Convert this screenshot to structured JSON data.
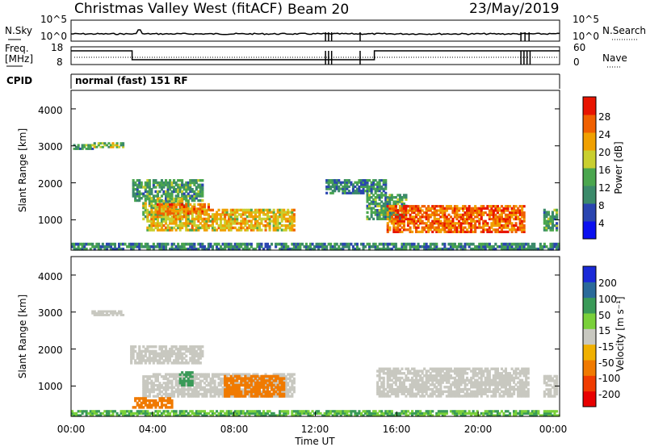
{
  "header": {
    "station": "Christmas Valley West (fitACF)",
    "beam": "Beam 20",
    "date": "23/May/2019"
  },
  "noise_panel": {
    "left_label": "N.Sky",
    "right_label": "N.Search",
    "left_ticks": [
      "10^5",
      "10^0"
    ],
    "right_ticks": [
      "10^5",
      "10^0"
    ]
  },
  "freq_panel": {
    "left_label_1": "Freq.",
    "left_label_2": "[MHz]",
    "right_label": "Nave",
    "left_ticks": [
      "18",
      "8"
    ],
    "right_ticks": [
      "60",
      "0"
    ]
  },
  "cpid": {
    "label": "CPID",
    "value": "normal (fast) 151 RF"
  },
  "x_axis": {
    "title": "Time UT",
    "ticks": [
      "00:00",
      "04:00",
      "08:00",
      "12:00",
      "16:00",
      "20:00",
      "00:00"
    ]
  },
  "power_panel": {
    "ylabel": "Slant Range [km]",
    "yticks": [
      "4000",
      "3000",
      "2000",
      "1000"
    ],
    "colorbar_title": "Power [dB]",
    "colorbar_ticks": [
      "28",
      "24",
      "20",
      "16",
      "12",
      "8",
      "4"
    ],
    "colorbar_colors": [
      "#0a10f0",
      "#2a45b0",
      "#3b8a6a",
      "#4aa64e",
      "#c9cf2f",
      "#f0a000",
      "#f06000",
      "#e81400"
    ]
  },
  "velocity_panel": {
    "ylabel": "Slant Range [km]",
    "yticks": [
      "4000",
      "3000",
      "2000",
      "1000"
    ],
    "colorbar_title": "Velocity [m s⁻¹]",
    "colorbar_ticks": [
      "200",
      "100",
      "50",
      "15",
      "-15",
      "-50",
      "-100",
      "-200"
    ],
    "colorbar_colors": [
      "#1a2ad8",
      "#2a6a9a",
      "#3a9a58",
      "#7ad03a",
      "#c8c8c0",
      "#f0b000",
      "#f07a00",
      "#f03c00",
      "#e80000"
    ]
  },
  "chart_data": [
    {
      "type": "heatmap",
      "title": "Power [dB]",
      "xlabel": "Time UT",
      "ylabel": "Slant Range [km]",
      "x_range_hours": [
        0,
        24
      ],
      "ylim": [
        180,
        4500
      ],
      "colorbar_range": [
        0,
        32
      ],
      "patches": [
        {
          "t": [
            0.1,
            1.1
          ],
          "r": [
            2900,
            3050
          ],
          "value": 12
        },
        {
          "t": [
            1.1,
            2.6
          ],
          "r": [
            2950,
            3100
          ],
          "value": 16
        },
        {
          "t": [
            3.0,
            6.5
          ],
          "r": [
            1500,
            2100
          ],
          "value": 12
        },
        {
          "t": [
            3.5,
            5.8
          ],
          "r": [
            1000,
            1600
          ],
          "value": 16
        },
        {
          "t": [
            3.7,
            11.0
          ],
          "r": [
            700,
            1300
          ],
          "value": 20
        },
        {
          "t": [
            4.2,
            6.8
          ],
          "r": [
            1150,
            1450
          ],
          "value": 24
        },
        {
          "t": [
            12.5,
            15.5
          ],
          "r": [
            1700,
            2100
          ],
          "value": 10
        },
        {
          "t": [
            14.5,
            16.5
          ],
          "r": [
            1000,
            1700
          ],
          "value": 12
        },
        {
          "t": [
            15.5,
            22.3
          ],
          "r": [
            650,
            1400
          ],
          "value": 26
        },
        {
          "t": [
            23.2,
            23.9
          ],
          "r": [
            700,
            1300
          ],
          "value": 12
        },
        {
          "t": [
            0.0,
            24.0
          ],
          "r": [
            180,
            380
          ],
          "value": 10
        }
      ]
    },
    {
      "type": "heatmap",
      "title": "Velocity [m s⁻¹]",
      "xlabel": "Time UT",
      "ylabel": "Slant Range [km]",
      "x_range_hours": [
        0,
        24
      ],
      "ylim": [
        180,
        4500
      ],
      "colorbar_range": [
        -250,
        250
      ],
      "patches": [
        {
          "t": [
            1.0,
            2.6
          ],
          "r": [
            2900,
            3050
          ],
          "value": 0
        },
        {
          "t": [
            2.9,
            6.5
          ],
          "r": [
            1600,
            2100
          ],
          "value": 0
        },
        {
          "t": [
            3.5,
            11.0
          ],
          "r": [
            700,
            1350
          ],
          "value": 0
        },
        {
          "t": [
            3.0,
            5.0
          ],
          "r": [
            400,
            700
          ],
          "value": -40
        },
        {
          "t": [
            7.5,
            10.5
          ],
          "r": [
            700,
            1300
          ],
          "value": -40
        },
        {
          "t": [
            5.3,
            6.0
          ],
          "r": [
            1000,
            1400
          ],
          "value": 40
        },
        {
          "t": [
            15.0,
            22.5
          ],
          "r": [
            700,
            1500
          ],
          "value": 0
        },
        {
          "t": [
            23.2,
            23.9
          ],
          "r": [
            700,
            1300
          ],
          "value": 0
        },
        {
          "t": [
            0.0,
            24.0
          ],
          "r": [
            180,
            350
          ],
          "value": 30
        }
      ]
    }
  ]
}
